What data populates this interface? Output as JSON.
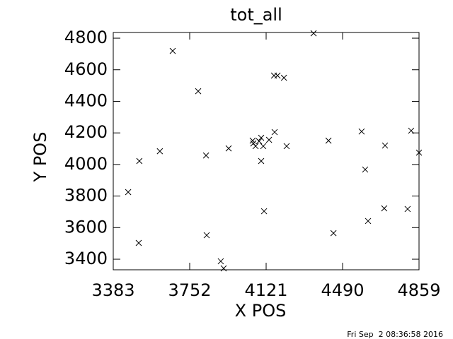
{
  "chart_data": {
    "type": "scatter",
    "title": "tot_all",
    "x_label": "X POS",
    "y_label": "Y POS",
    "timestamp": "Fri Sep  2 08:36:58 2016",
    "color": "#000000",
    "xlim": [
      3383,
      4859
    ],
    "xticks": [
      3383,
      3752,
      4121,
      4490,
      4859
    ],
    "ylim": [
      3333,
      4836
    ],
    "yticks": [
      3400,
      3600,
      3800,
      4000,
      4200,
      4400,
      4600,
      4800
    ],
    "x": [
      3455,
      3509,
      3506,
      3608,
      3670,
      3793,
      3831,
      3834,
      3940,
      3902,
      3916,
      4056,
      4059,
      4070,
      4087,
      4097,
      4097,
      4107,
      4111,
      4135,
      4162,
      4159,
      4176,
      4207,
      4220,
      4350,
      4422,
      4446,
      4582,
      4599,
      4613,
      4691,
      4695,
      4804,
      4821,
      4859
    ],
    "y": [
      3825,
      4022,
      3503,
      4084,
      4719,
      4464,
      4057,
      3552,
      4102,
      3387,
      3342,
      4151,
      4133,
      4116,
      4147,
      4169,
      4022,
      4116,
      3704,
      4156,
      4205,
      4563,
      4563,
      4549,
      4116,
      4831,
      4151,
      3565,
      4209,
      3968,
      3642,
      3722,
      4120,
      3718,
      4214,
      4075
    ]
  }
}
